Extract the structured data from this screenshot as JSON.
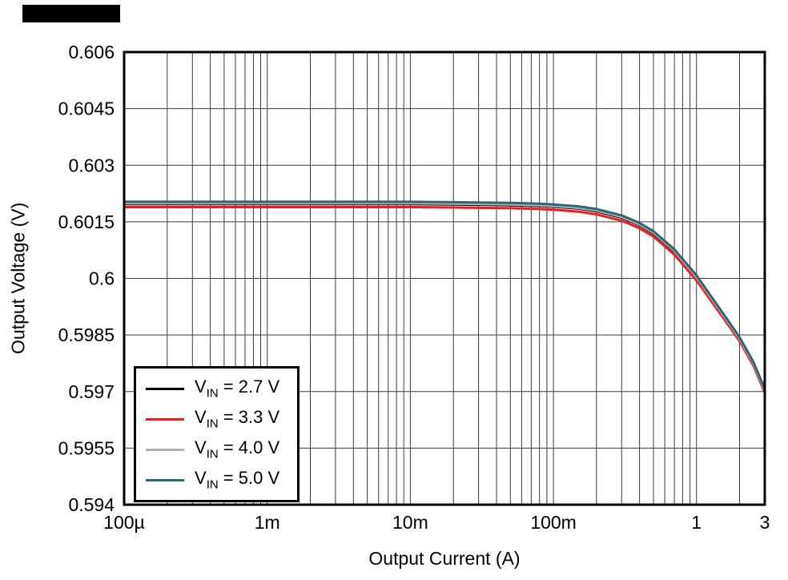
{
  "chart_data": {
    "type": "line",
    "xlabel": "Output Current (A)",
    "ylabel": "Output Voltage (V)",
    "x_scale": "log",
    "xlim": [
      0.0001,
      3
    ],
    "ylim": [
      0.594,
      0.606
    ],
    "x_ticks": [
      {
        "v": 0.0001,
        "label": "100µ"
      },
      {
        "v": 0.001,
        "label": "1m"
      },
      {
        "v": 0.01,
        "label": "10m"
      },
      {
        "v": 0.1,
        "label": "100m"
      },
      {
        "v": 1,
        "label": "1"
      },
      {
        "v": 3,
        "label": "3"
      }
    ],
    "y_ticks": [
      {
        "v": 0.594,
        "label": "0.594"
      },
      {
        "v": 0.5955,
        "label": "0.5955"
      },
      {
        "v": 0.597,
        "label": "0.597"
      },
      {
        "v": 0.5985,
        "label": "0.5985"
      },
      {
        "v": 0.6,
        "label": "0.6"
      },
      {
        "v": 0.6015,
        "label": "0.6015"
      },
      {
        "v": 0.603,
        "label": "0.603"
      },
      {
        "v": 0.6045,
        "label": "0.6045"
      },
      {
        "v": 0.606,
        "label": "0.606"
      }
    ],
    "grid": {
      "color": "#3d3d3d",
      "major": true,
      "minor_x": true,
      "minor_y": false
    },
    "frame_color": "#000000",
    "legend_position": "lower-left",
    "x": [
      0.0001,
      0.0002,
      0.0005,
      0.001,
      0.002,
      0.005,
      0.01,
      0.02,
      0.05,
      0.08,
      0.1,
      0.15,
      0.2,
      0.3,
      0.4,
      0.5,
      0.7,
      1.0,
      1.3,
      1.7,
      2.0,
      2.5,
      3.0
    ],
    "series": [
      {
        "name": "VIN = 2.7 V",
        "label_pre": "V",
        "label_sub": "IN",
        "label_post": " = 2.7 V",
        "color": "#000000",
        "y": [
          0.60197,
          0.60197,
          0.60197,
          0.60197,
          0.60197,
          0.60197,
          0.60197,
          0.60196,
          0.60194,
          0.60192,
          0.6019,
          0.60185,
          0.60178,
          0.60161,
          0.60141,
          0.60119,
          0.60071,
          0.60002,
          0.5994,
          0.59877,
          0.59838,
          0.59772,
          0.59701
        ]
      },
      {
        "name": "VIN = 3.3 V",
        "label_pre": "V",
        "label_sub": "IN",
        "label_post": " = 3.3 V",
        "color": "#ed1c24",
        "y": [
          0.60189,
          0.60189,
          0.60189,
          0.60189,
          0.60189,
          0.60189,
          0.60189,
          0.60188,
          0.60186,
          0.60184,
          0.60182,
          0.60177,
          0.6017,
          0.60153,
          0.60133,
          0.60111,
          0.60063,
          0.59995,
          0.59934,
          0.59872,
          0.59834,
          0.59768,
          0.59697
        ]
      },
      {
        "name": "VIN = 4.0 V",
        "label_pre": "V",
        "label_sub": "IN",
        "label_post": " = 4.0 V",
        "color": "#b3b3b3",
        "y": [
          0.60199,
          0.60199,
          0.60199,
          0.60199,
          0.60199,
          0.60199,
          0.60199,
          0.60198,
          0.60196,
          0.60194,
          0.60192,
          0.60187,
          0.6018,
          0.60163,
          0.60143,
          0.60121,
          0.60073,
          0.60004,
          0.59942,
          0.59879,
          0.5984,
          0.59774,
          0.59703
        ]
      },
      {
        "name": "VIN = 5.0 V",
        "label_pre": "V",
        "label_sub": "IN",
        "label_post": " = 5.0 V",
        "color": "#2f6575",
        "y": [
          0.60203,
          0.60203,
          0.60203,
          0.60203,
          0.60203,
          0.60203,
          0.60203,
          0.60202,
          0.602,
          0.60198,
          0.60196,
          0.60191,
          0.60184,
          0.60167,
          0.60147,
          0.60125,
          0.60077,
          0.60008,
          0.59946,
          0.59883,
          0.59844,
          0.59778,
          0.59707
        ]
      }
    ]
  }
}
